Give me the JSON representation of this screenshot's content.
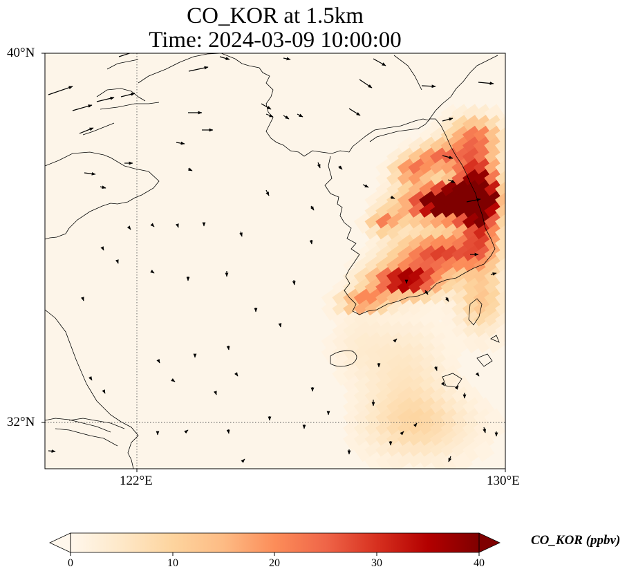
{
  "title_line1": "CO_KOR at 1.5km",
  "title_line2": "Time: 2024-03-09 10:00:00",
  "lat_labels": [
    "40°N",
    "32°N"
  ],
  "lon_labels": [
    "122°E",
    "130°E"
  ],
  "colorbar": {
    "label": "CO_KOR (ppbv)",
    "ticks": [
      "0",
      "10",
      "20",
      "30",
      "40"
    ],
    "min": 0,
    "max": 40,
    "colormap": "OrRd",
    "extend": "both"
  },
  "map": {
    "extent": {
      "lon_min": 120,
      "lon_max": 130,
      "lat_min": 31,
      "lat_max": 40
    },
    "gridlines": {
      "lons": [
        122
      ],
      "lats": [
        32
      ],
      "style": "dotted"
    },
    "coastline_color": "#000000",
    "background_color": "#fdf5e9"
  }
}
